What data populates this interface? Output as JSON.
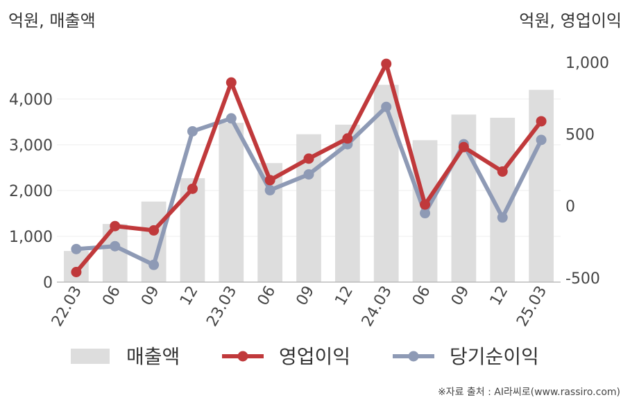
{
  "chart_data": {
    "type": "bar",
    "left_unit": "억원, 매출액",
    "right_unit": "억원, 영업이익",
    "categories": [
      "22.03",
      "06",
      "09",
      "12",
      "23.03",
      "06",
      "09",
      "12",
      "24.03",
      "06",
      "09",
      "12",
      "25.03"
    ],
    "series": [
      {
        "name": "매출액",
        "type": "bar",
        "axis": "left",
        "color": "#dddddd",
        "values": [
          680,
          1270,
          1760,
          2270,
          3480,
          2600,
          3230,
          3440,
          4310,
          3100,
          3660,
          3590,
          4200
        ]
      },
      {
        "name": "영업이익",
        "type": "line",
        "axis": "right",
        "color": "#c0393b",
        "values": [
          -460,
          -140,
          -170,
          120,
          860,
          180,
          330,
          470,
          990,
          10,
          410,
          240,
          590
        ]
      },
      {
        "name": "당기순이익",
        "type": "line",
        "axis": "right",
        "color": "#8e9ab5",
        "values": [
          -300,
          -280,
          -410,
          520,
          610,
          110,
          220,
          430,
          690,
          -50,
          430,
          -80,
          460
        ]
      }
    ],
    "left_axis": {
      "min": 0,
      "max": 4800,
      "ticks": [
        0,
        1000,
        2000,
        3000,
        4000
      ],
      "tick_labels": [
        "0",
        "1,000",
        "2,000",
        "3,000",
        "4,000"
      ]
    },
    "right_axis": {
      "min": -530,
      "max": 1000,
      "ticks": [
        -500,
        0,
        500,
        1000
      ],
      "tick_labels": [
        "-500",
        "0",
        "500",
        "1,000"
      ]
    },
    "grid": true,
    "legend_position": "bottom"
  },
  "source": "※자료 출처 : AI라씨로(www.rassiro.com)"
}
